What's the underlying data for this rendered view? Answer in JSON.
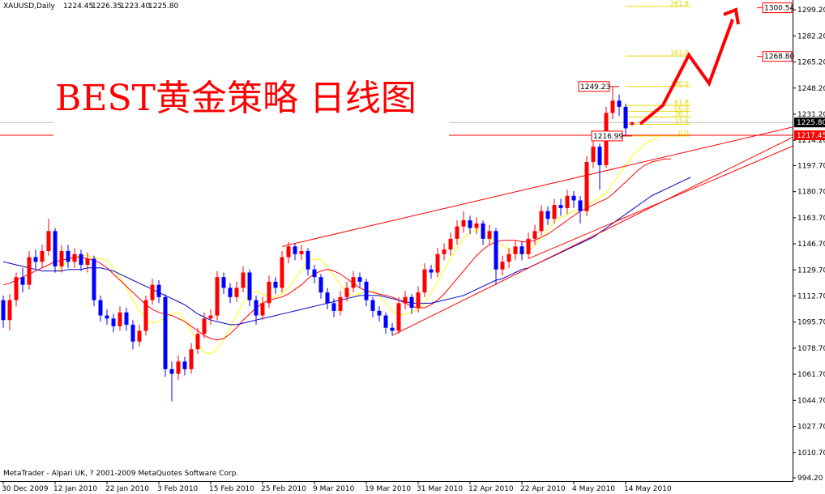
{
  "chart_data": {
    "type": "candlestick",
    "header": [
      "XAUUSD,Daily",
      "1224.45",
      "1226.35",
      "1223.40",
      "1225.80"
    ],
    "title": "BEST黄金策略  日线图",
    "footer": "MetaTrader - Alpari UK, ? 2001-2009 MetaQuotes Software Corp.",
    "categories": [
      "30 Dec 2009",
      null,
      null,
      null,
      null,
      null,
      null,
      null,
      "12 Jan 2010",
      null,
      null,
      null,
      null,
      null,
      null,
      null,
      "22 Jan 2010",
      null,
      null,
      null,
      null,
      null,
      null,
      null,
      "3 Feb 2010",
      null,
      null,
      null,
      null,
      null,
      null,
      null,
      "15 Feb 2010",
      null,
      null,
      null,
      null,
      null,
      null,
      null,
      "25 Feb 2010",
      null,
      null,
      null,
      null,
      null,
      null,
      null,
      "9 Mar 2010",
      null,
      null,
      null,
      null,
      null,
      null,
      null,
      "19 Mar 2010",
      null,
      null,
      null,
      null,
      null,
      null,
      null,
      "31 Mar 2010",
      null,
      null,
      null,
      null,
      null,
      null,
      null,
      "12 Apr 2010",
      null,
      null,
      null,
      null,
      null,
      null,
      null,
      "22 Apr 2010",
      null,
      null,
      null,
      null,
      null,
      null,
      null,
      "4 May 2010",
      null,
      null,
      null,
      null,
      null,
      null,
      null,
      "14 May 2010",
      null,
      null,
      null,
      null,
      null,
      null,
      null,
      null,
      null,
      null
    ],
    "open": [
      1110,
      1097,
      1110,
      1125,
      1120,
      1138,
      1135,
      1142,
      1155,
      1132,
      1142,
      1135,
      1140,
      1133,
      1137,
      1110,
      1100,
      1098,
      1093,
      1102,
      1094,
      1083,
      1090,
      1110,
      1120,
      1112,
      1065,
      1062,
      1070,
      1065,
      1078,
      1088,
      1098,
      1100,
      1125,
      1118,
      1112,
      1118,
      1128,
      1110,
      1100,
      1108,
      1122,
      1118,
      1138,
      1145,
      1140,
      1142,
      1130,
      1125,
      1115,
      1108,
      1103,
      1112,
      1118,
      1125,
      1122,
      1110,
      1103,
      1100,
      1092,
      1090,
      1108,
      1112,
      1105,
      1115,
      1130,
      1128,
      1140,
      1143,
      1150,
      1158,
      1162,
      1157,
      1160,
      1150,
      1155,
      1130,
      1135,
      1140,
      1145,
      1140,
      1150,
      1155,
      1168,
      1163,
      1172,
      1170,
      1178,
      1175,
      1168,
      1200,
      1210,
      1198,
      1232,
      1240,
      1236,
      1224.45,
      null,
      null,
      null,
      null,
      null,
      null,
      null,
      null,
      null
    ],
    "high": [
      1113,
      1114,
      1128,
      1131,
      1142,
      1143,
      1146,
      1163,
      1157,
      1146,
      1146,
      1144,
      1143,
      1141,
      1139,
      1113,
      1104,
      1101,
      1106,
      1105,
      1097,
      1094,
      1113,
      1124,
      1123,
      1114,
      1070,
      1074,
      1073,
      1082,
      1092,
      1102,
      1104,
      1129,
      1128,
      1121,
      1122,
      1132,
      1130,
      1113,
      1112,
      1126,
      1125,
      1142,
      1148,
      1147,
      1146,
      1144,
      1133,
      1127,
      1118,
      1111,
      1116,
      1122,
      1129,
      1128,
      1124,
      1112,
      1106,
      1102,
      1095,
      1112,
      1116,
      1114,
      1119,
      1134,
      1133,
      1144,
      1147,
      1154,
      1162,
      1168,
      1165,
      1164,
      1162,
      1159,
      1157,
      1139,
      1144,
      1149,
      1148,
      1154,
      1159,
      1172,
      1171,
      1176,
      1176,
      1182,
      1181,
      1178,
      1204,
      1214,
      1212,
      1236,
      1249.23,
      1244,
      1238,
      1226.35,
      null,
      null,
      null,
      null,
      null,
      null,
      null,
      null,
      null
    ],
    "low": [
      1092,
      1090,
      1106,
      1115,
      1117,
      1130,
      1131,
      1139,
      1128,
      1128,
      1131,
      1131,
      1129,
      1128,
      1106,
      1096,
      1094,
      1089,
      1090,
      1090,
      1078,
      1080,
      1087,
      1107,
      1108,
      1060,
      1044,
      1058,
      1061,
      1062,
      1075,
      1085,
      1094,
      1097,
      1114,
      1108,
      1109,
      1115,
      1106,
      1094,
      1097,
      1105,
      1114,
      1115,
      1134,
      1136,
      1136,
      1126,
      1121,
      1111,
      1104,
      1099,
      1100,
      1109,
      1115,
      1118,
      1106,
      1099,
      1096,
      1088,
      1087,
      1088,
      1104,
      1101,
      1102,
      1112,
      1124,
      1125,
      1136,
      1139,
      1146,
      1154,
      1153,
      1153,
      1146,
      1146,
      1120,
      1126,
      1131,
      1136,
      1136,
      1137,
      1146,
      1152,
      1159,
      1160,
      1165,
      1166,
      1170,
      1160,
      1165,
      1196,
      1182,
      1196,
      1228,
      1230,
      1216.99,
      1223.4,
      null,
      null,
      null,
      null,
      null,
      null,
      null,
      null,
      null
    ],
    "close": [
      1097,
      1110,
      1125,
      1120,
      1138,
      1135,
      1142,
      1155,
      1132,
      1142,
      1135,
      1140,
      1133,
      1137,
      1110,
      1100,
      1098,
      1093,
      1102,
      1094,
      1083,
      1090,
      1110,
      1120,
      1112,
      1065,
      1062,
      1070,
      1065,
      1078,
      1088,
      1098,
      1100,
      1125,
      1118,
      1112,
      1118,
      1128,
      1110,
      1100,
      1108,
      1122,
      1118,
      1138,
      1145,
      1140,
      1142,
      1130,
      1125,
      1115,
      1108,
      1103,
      1112,
      1118,
      1125,
      1122,
      1110,
      1103,
      1100,
      1092,
      1090,
      1108,
      1112,
      1105,
      1115,
      1130,
      1128,
      1140,
      1143,
      1150,
      1158,
      1162,
      1157,
      1160,
      1150,
      1155,
      1130,
      1135,
      1140,
      1145,
      1140,
      1150,
      1155,
      1168,
      1163,
      1172,
      1170,
      1178,
      1175,
      1168,
      1200,
      1210,
      1198,
      1232,
      1240,
      1236,
      1222,
      1225.8,
      null,
      null,
      null,
      null,
      null,
      null,
      null,
      null,
      null
    ],
    "up_color": "#ff0000",
    "down_color": "#0000ff",
    "moving_averages": [
      {
        "color": "#ffff00",
        "values": [
          null,
          null,
          null,
          null,
          null,
          null,
          null,
          null,
          1128,
          1132,
          1135,
          1138,
          1139,
          1139,
          1138,
          1137,
          1136,
          1131,
          1125,
          1118,
          1110,
          1103,
          1098,
          1095,
          1096,
          1099,
          1101,
          1102,
          1097,
          1090,
          1082,
          1076,
          1075,
          1078,
          1084,
          1092,
          1100,
          1108,
          1114,
          1116,
          1114,
          1112,
          1112,
          1114,
          1118,
          1124,
          1130,
          1135,
          1137,
          1136,
          1132,
          1126,
          1120,
          1115,
          1113,
          1114,
          1116,
          1116,
          1113,
          1108,
          1103,
          1100,
          1101,
          1102,
          1104,
          1108,
          1115,
          1122,
          1130,
          1137,
          1144,
          1150,
          1154,
          1156,
          1155,
          1150,
          1148,
          1146,
          1143,
          1141,
          1140,
          1142,
          1146,
          1150,
          1156,
          1161,
          1164,
          1166,
          1168,
          1170,
          1172,
          1174,
          1177,
          1180,
          1186,
          1192,
          1198,
          1204,
          1208,
          1212,
          1214,
          1216,
          null,
          null,
          null,
          null,
          null
        ]
      },
      {
        "color": "#ff0000",
        "values": [
          1120,
          1121,
          1123,
          1125,
          1127,
          1129,
          1131,
          1133,
          1135,
          1136,
          1137,
          1138,
          1138,
          1137,
          1136,
          1134,
          1131,
          1127,
          1123,
          1119,
          1115,
          1111,
          1107,
          1104,
          1102,
          1101,
          1100,
          1098,
          1096,
          1093,
          1090,
          1087,
          1085,
          1084,
          1085,
          1088,
          1092,
          1097,
          1101,
          1105,
          1108,
          1110,
          1111,
          1112,
          1114,
          1117,
          1120,
          1124,
          1127,
          1129,
          1130,
          1129,
          1127,
          1124,
          1121,
          1118,
          1116,
          1115,
          1114,
          1113,
          1112,
          1110,
          1108,
          1106,
          1105,
          1105,
          1107,
          1110,
          1114,
          1119,
          1124,
          1129,
          1134,
          1139,
          1143,
          1146,
          1148,
          1149,
          1149,
          1149,
          1148,
          1148,
          1149,
          1151,
          1153,
          1156,
          1159,
          1162,
          1165,
          1168,
          1170,
          1172,
          1174,
          1176,
          1179,
          1183,
          1187,
          1191,
          1195,
          1198,
          1200,
          1201,
          1202,
          1202,
          null,
          null,
          null
        ]
      },
      {
        "color": "#0000c8",
        "values": [
          1135,
          1134,
          1133,
          1132,
          1131,
          1130,
          1129,
          1129,
          1129,
          1129,
          1130,
          1130,
          1130,
          1131,
          1131,
          1131,
          1130,
          1129,
          1127,
          1125,
          1123,
          1121,
          1119,
          1117,
          1115,
          1113,
          1111,
          1109,
          1107,
          1104,
          1101,
          1099,
          1097,
          1096,
          1095,
          1094,
          1094,
          1095,
          1096,
          1097,
          1098,
          1099,
          1100,
          1101,
          1102,
          1103,
          1104,
          1105,
          1106,
          1107,
          1108,
          1109,
          1110,
          1111,
          1112,
          1113,
          1113,
          1113,
          1113,
          1112,
          1111,
          1110,
          1109,
          1108,
          1108,
          1108,
          1108,
          1109,
          1110,
          1111,
          1112,
          1113,
          1115,
          1117,
          1119,
          1121,
          1123,
          1124,
          1126,
          1128,
          1130,
          1131,
          1133,
          1135,
          1137,
          1139,
          1141,
          1143,
          1145,
          1147,
          1149,
          1151,
          1154,
          1157,
          1160,
          1163,
          1166,
          1169,
          1172,
          1175,
          1178,
          1180,
          1182,
          1184,
          1186,
          1188,
          1190
        ]
      }
    ],
    "trendlines": [
      {
        "color": "#ff0000",
        "bars": [
          43,
          126
        ],
        "prices": [
          1145,
          1227
        ]
      },
      {
        "color": "#ff0000",
        "bars": [
          60,
          126
        ],
        "prices": [
          1087,
          1225
        ]
      },
      {
        "color": "#ff0000",
        "bars": [
          81,
          126
        ],
        "prices": [
          1137,
          1218
        ]
      }
    ],
    "fibonacci": {
      "color": "#e8d800",
      "bars": [
        96,
        106
      ],
      "levels": [
        {
          "label": "0.0",
          "price": 1216.99
        },
        {
          "label": "23.6",
          "price": 1224.6
        },
        {
          "label": "38.2",
          "price": 1229.31
        },
        {
          "label": "50.0",
          "price": 1233.11
        },
        {
          "label": "61.8",
          "price": 1236.91
        },
        {
          "label": "100.0",
          "price": 1249.23
        },
        {
          "label": "161.8",
          "price": 1269.15
        },
        {
          "label": "261.8",
          "price": 1301.4
        }
      ]
    },
    "price_labels": [
      {
        "value": 1300.54,
        "label": "1300.54",
        "kind": "level"
      },
      {
        "value": 1268.8,
        "label": "1268.80",
        "kind": "level"
      },
      {
        "value": 1225.8,
        "label": "1225.80",
        "kind": "bid"
      },
      {
        "value": 1217.45,
        "label": "1217.45",
        "kind": "line"
      }
    ],
    "point_labels": [
      {
        "value": 1249.23,
        "label": "1249.23"
      },
      {
        "value": 1216.99,
        "label": "1216.99"
      }
    ],
    "ylim": [
      992.1,
      1305.6
    ],
    "yticks": [
      {
        "value": 994.2,
        "label": "994.20"
      },
      {
        "value": 1010.7,
        "label": "1010.70"
      },
      {
        "value": 1027.7,
        "label": "1027.70"
      },
      {
        "value": 1044.7,
        "label": "1044.70"
      },
      {
        "value": 1061.7,
        "label": "1061.70"
      },
      {
        "value": 1078.7,
        "label": "1078.70"
      },
      {
        "value": 1095.7,
        "label": "1095.70"
      },
      {
        "value": 1112.7,
        "label": "1112.70"
      },
      {
        "value": 1129.7,
        "label": "1129.70"
      },
      {
        "value": 1146.7,
        "label": "1146.70"
      },
      {
        "value": 1163.7,
        "label": "1163.70"
      },
      {
        "value": 1180.7,
        "label": "1180.70"
      },
      {
        "value": 1197.7,
        "label": "1197.70"
      },
      {
        "value": 1214.2,
        "label": "1214.20"
      },
      {
        "value": 1231.2,
        "label": "1231.20"
      },
      {
        "value": 1248.2,
        "label": "1248.20"
      },
      {
        "value": 1265.2,
        "label": "1265.20"
      },
      {
        "value": 1282.2,
        "label": "1282.20"
      },
      {
        "value": 1299.2,
        "label": "1299.20"
      }
    ],
    "grid": false
  }
}
